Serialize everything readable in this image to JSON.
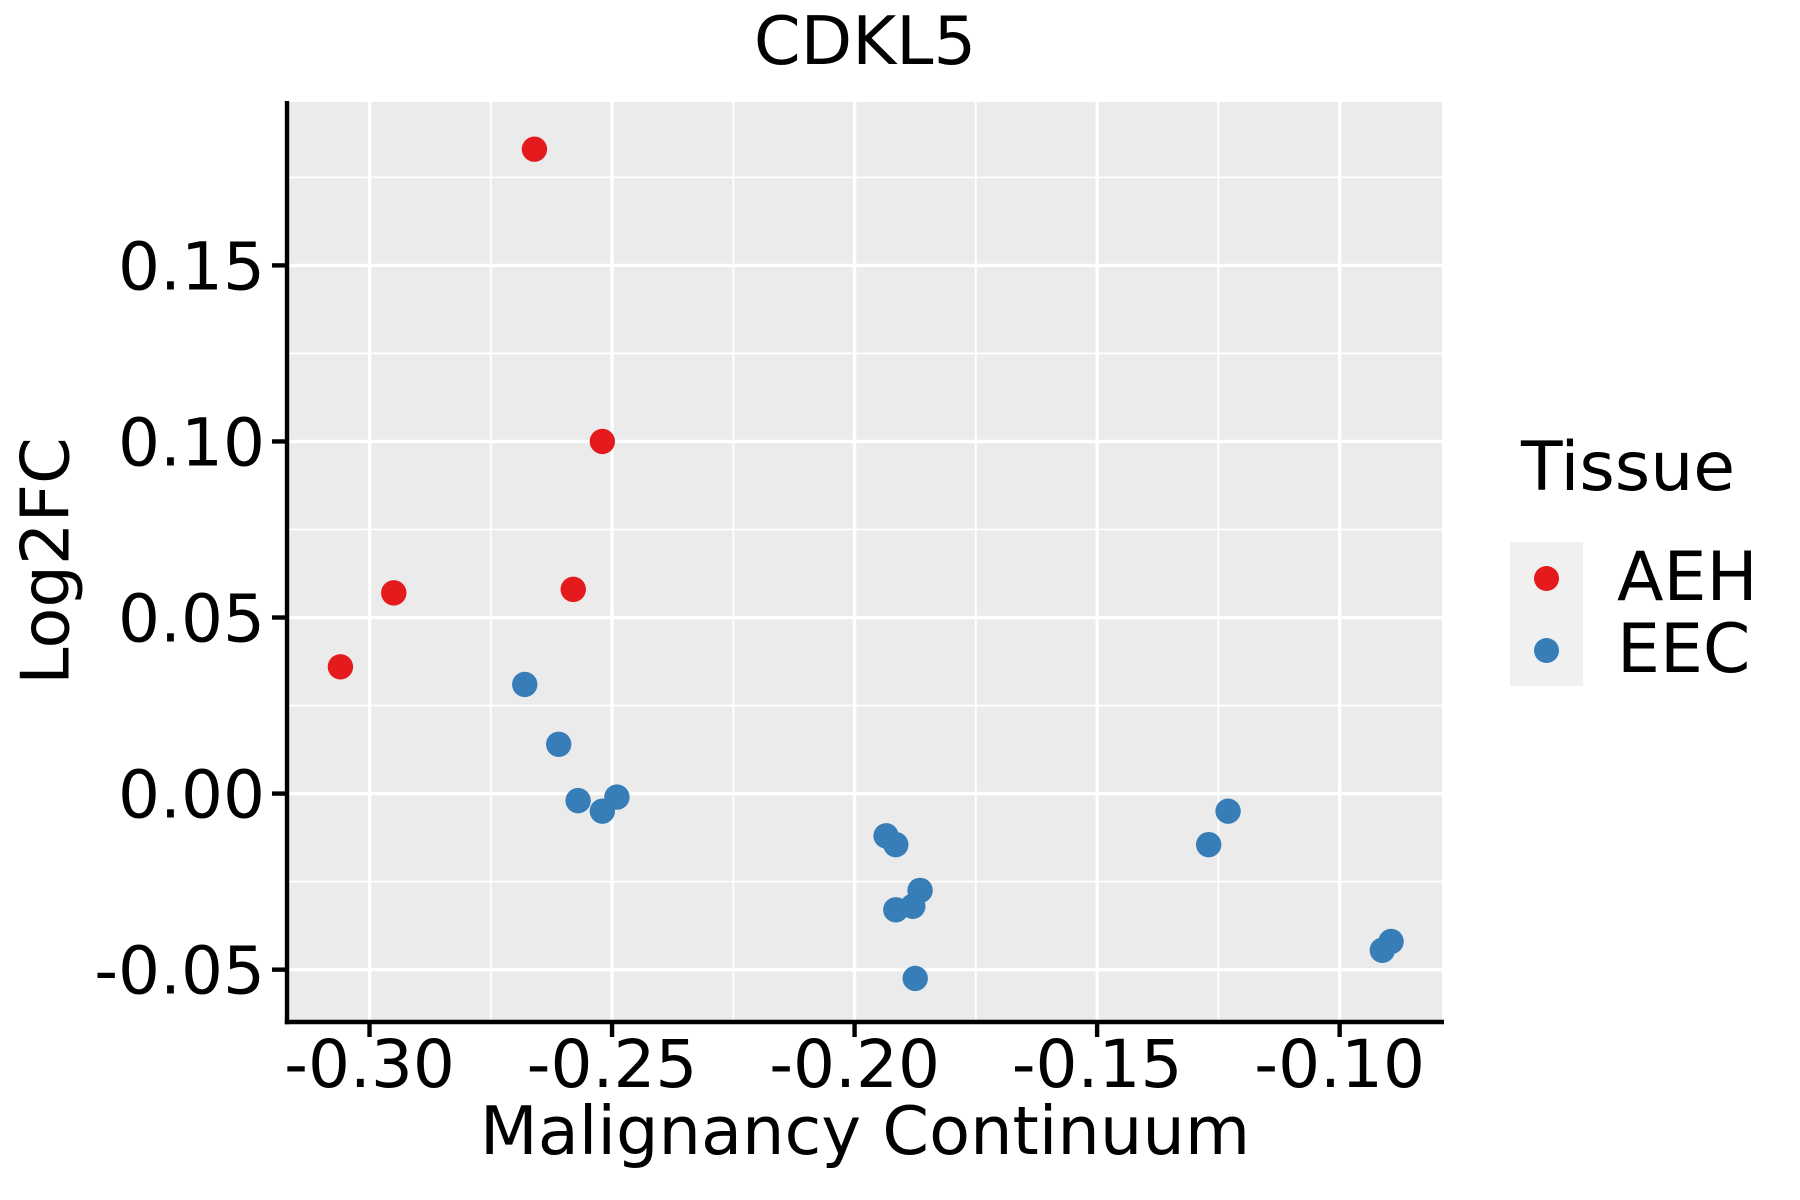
{
  "chart_data": {
    "type": "scatter",
    "title": "CDKL5",
    "xlabel": "Malignancy Continuum",
    "ylabel": "Log2FC",
    "legend_title": "Tissue",
    "legend_position": "right",
    "grid": true,
    "panel_background": "#EBEBEB",
    "grid_color": "#FFFFFF",
    "spine_color": "#000000",
    "tick_color": "#000000",
    "text_color": "#000000",
    "xlim": [
      -0.3166,
      -0.0789
    ],
    "ylim": [
      -0.0643,
      0.1964
    ],
    "x_ticks": [
      -0.3,
      -0.25,
      -0.2,
      -0.15,
      -0.1
    ],
    "x_tick_labels": [
      "-0.30",
      "-0.25",
      "-0.20",
      "-0.15",
      "-0.10"
    ],
    "x_minor_ticks": [
      -0.275,
      -0.225,
      -0.175,
      -0.125
    ],
    "y_ticks": [
      0.15,
      0.1,
      0.05,
      0.0,
      -0.05
    ],
    "y_tick_labels": [
      "0.15",
      "0.10",
      "0.05",
      "0.00",
      "-0.05"
    ],
    "y_minor_ticks": [
      0.175,
      0.125,
      0.075,
      0.025,
      -0.025
    ],
    "series": [
      {
        "name": "AEH",
        "color": "#E41A1C",
        "points": [
          [
            -0.306,
            0.036
          ],
          [
            -0.295,
            0.057
          ],
          [
            -0.266,
            0.183
          ],
          [
            -0.258,
            0.058
          ],
          [
            -0.252,
            0.1
          ]
        ]
      },
      {
        "name": "EEC",
        "color": "#377EB8",
        "points": [
          [
            -0.268,
            0.031
          ],
          [
            -0.261,
            0.014
          ],
          [
            -0.257,
            -0.002
          ],
          [
            -0.252,
            -0.005
          ],
          [
            -0.249,
            -0.001
          ],
          [
            -0.1935,
            -0.012
          ],
          [
            -0.1915,
            -0.0145
          ],
          [
            -0.1915,
            -0.033
          ],
          [
            -0.188,
            -0.032
          ],
          [
            -0.1865,
            -0.0275
          ],
          [
            -0.1875,
            -0.0525
          ],
          [
            -0.127,
            -0.0145
          ],
          [
            -0.123,
            -0.005
          ],
          [
            -0.0912,
            -0.0445
          ],
          [
            -0.0894,
            -0.042
          ]
        ]
      }
    ]
  }
}
